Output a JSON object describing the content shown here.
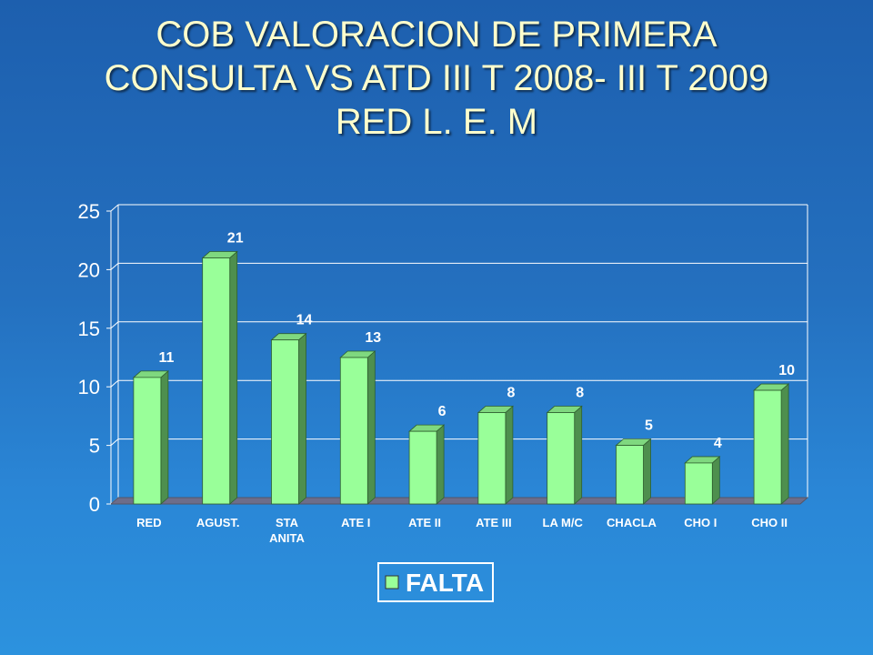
{
  "slide": {
    "title_lines": [
      "COB VALORACION DE PRIMERA",
      "CONSULTA VS ATD III T 2008- III T 2009",
      "RED L. E. M"
    ]
  },
  "colors": {
    "background": "#2470bf",
    "title": "#ffffcc",
    "bar_front": "#99ff99",
    "bar_top": "#7fd87f",
    "bar_side": "#4e8f4e",
    "gridline": "#ffffff",
    "text": "#ffffff"
  },
  "chart_data": {
    "type": "bar",
    "title": "",
    "xlabel": "",
    "ylabel": "",
    "categories": [
      "RED",
      "AGUST.",
      "STA ANITA",
      "ATE I",
      "ATE II",
      "ATE III",
      "LA M/C",
      "CHACLA",
      "CHO I",
      "CHO II"
    ],
    "series": [
      {
        "name": "FALTA",
        "values": [
          10.8,
          21,
          14,
          12.5,
          6.2,
          7.8,
          7.8,
          5,
          3.5,
          9.7
        ],
        "data_labels": [
          "11",
          "21",
          "14",
          "13",
          "6",
          "8",
          "8",
          "5",
          "4",
          "10"
        ]
      }
    ],
    "ylim": [
      0,
      25
    ],
    "yticks": [
      0,
      5,
      10,
      15,
      20,
      25
    ],
    "grid": true,
    "legend": {
      "position": "bottom-center",
      "entries": [
        "FALTA"
      ]
    },
    "style": "3d-column"
  }
}
